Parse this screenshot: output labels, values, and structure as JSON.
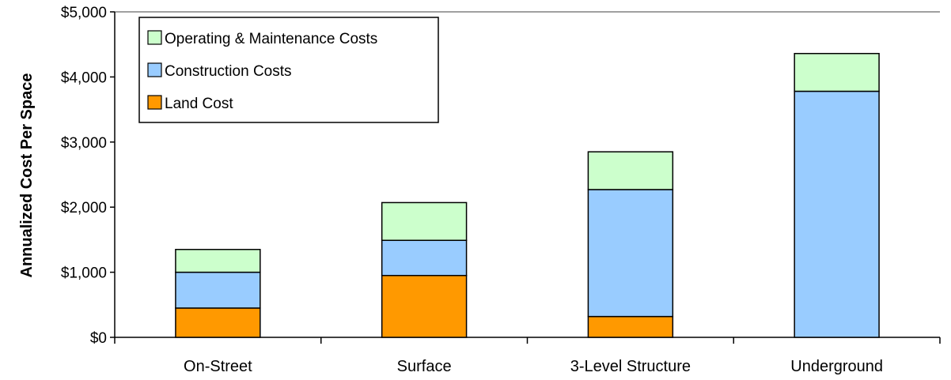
{
  "chart_data": {
    "type": "bar",
    "stacked": true,
    "title": "",
    "xlabel": "",
    "ylabel": "Annualized Cost Per Space",
    "ylim": [
      0,
      5000
    ],
    "yticks": [
      0,
      1000,
      2000,
      3000,
      4000,
      5000
    ],
    "ytick_labels": [
      "$0",
      "$1,000",
      "$2,000",
      "$3,000",
      "$4,000",
      "$5,000"
    ],
    "categories": [
      "On-Street",
      "Surface",
      "3-Level Structure",
      "Underground"
    ],
    "series": [
      {
        "name": "Land Cost",
        "color": "#FF9900",
        "values": [
          450,
          950,
          320,
          0
        ]
      },
      {
        "name": "Construction Costs",
        "color": "#99CCFF",
        "values": [
          550,
          540,
          1950,
          3780
        ]
      },
      {
        "name": "Operating & Maintenance Costs",
        "color": "#CCFFCC",
        "values": [
          350,
          580,
          580,
          580
        ]
      }
    ],
    "legend": {
      "position": "top-left",
      "order": [
        "Operating & Maintenance Costs",
        "Construction Costs",
        "Land Cost"
      ]
    },
    "grid": false
  }
}
